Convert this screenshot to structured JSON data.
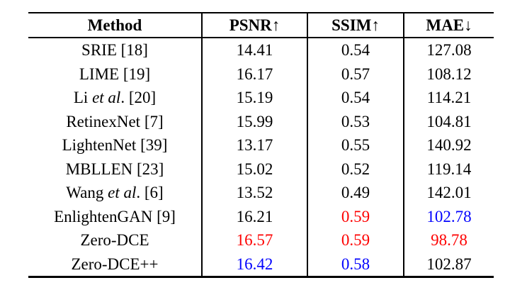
{
  "table": {
    "columns": [
      {
        "label": "Method"
      },
      {
        "label": "PSNR↑"
      },
      {
        "label": "SSIM↑"
      },
      {
        "label": "MAE↓"
      }
    ],
    "rows": [
      {
        "method": [
          {
            "t": "SRIE [18]",
            "i": false
          }
        ],
        "cells": [
          {
            "v": "14.41",
            "c": "black"
          },
          {
            "v": "0.54",
            "c": "black"
          },
          {
            "v": "127.08",
            "c": "black"
          }
        ]
      },
      {
        "method": [
          {
            "t": "LIME [19]",
            "i": false
          }
        ],
        "cells": [
          {
            "v": "16.17",
            "c": "black"
          },
          {
            "v": "0.57",
            "c": "black"
          },
          {
            "v": "108.12",
            "c": "black"
          }
        ]
      },
      {
        "method": [
          {
            "t": "Li ",
            "i": false
          },
          {
            "t": "et al",
            "i": true
          },
          {
            "t": ". [20]",
            "i": false
          }
        ],
        "cells": [
          {
            "v": "15.19",
            "c": "black"
          },
          {
            "v": "0.54",
            "c": "black"
          },
          {
            "v": "114.21",
            "c": "black"
          }
        ]
      },
      {
        "method": [
          {
            "t": "RetinexNet [7]",
            "i": false
          }
        ],
        "cells": [
          {
            "v": "15.99",
            "c": "black"
          },
          {
            "v": "0.53",
            "c": "black"
          },
          {
            "v": "104.81",
            "c": "black"
          }
        ]
      },
      {
        "method": [
          {
            "t": "LightenNet [39]",
            "i": false
          }
        ],
        "cells": [
          {
            "v": "13.17",
            "c": "black"
          },
          {
            "v": "0.55",
            "c": "black"
          },
          {
            "v": "140.92",
            "c": "black"
          }
        ]
      },
      {
        "method": [
          {
            "t": "MBLLEN [23]",
            "i": false
          }
        ],
        "cells": [
          {
            "v": "15.02",
            "c": "black"
          },
          {
            "v": "0.52",
            "c": "black"
          },
          {
            "v": "119.14",
            "c": "black"
          }
        ]
      },
      {
        "method": [
          {
            "t": "Wang ",
            "i": false
          },
          {
            "t": "et al",
            "i": true
          },
          {
            "t": ". [6]",
            "i": false
          }
        ],
        "cells": [
          {
            "v": "13.52",
            "c": "black"
          },
          {
            "v": "0.49",
            "c": "black"
          },
          {
            "v": "142.01",
            "c": "black"
          }
        ]
      },
      {
        "method": [
          {
            "t": "EnlightenGAN [9]",
            "i": false
          }
        ],
        "cells": [
          {
            "v": "16.21",
            "c": "black"
          },
          {
            "v": "0.59",
            "c": "red"
          },
          {
            "v": "102.78",
            "c": "blue"
          }
        ]
      },
      {
        "method": [
          {
            "t": "Zero-DCE",
            "i": false
          }
        ],
        "cells": [
          {
            "v": "16.57",
            "c": "red"
          },
          {
            "v": "0.59",
            "c": "red"
          },
          {
            "v": "98.78",
            "c": "red"
          }
        ]
      },
      {
        "method": [
          {
            "t": "Zero-DCE++",
            "i": false
          }
        ],
        "cells": [
          {
            "v": "16.42",
            "c": "blue"
          },
          {
            "v": "0.58",
            "c": "blue"
          },
          {
            "v": "102.87",
            "c": "black"
          }
        ]
      }
    ]
  },
  "colors": {
    "black": "#000000",
    "red": "#fe0000",
    "blue": "#0202fe"
  }
}
